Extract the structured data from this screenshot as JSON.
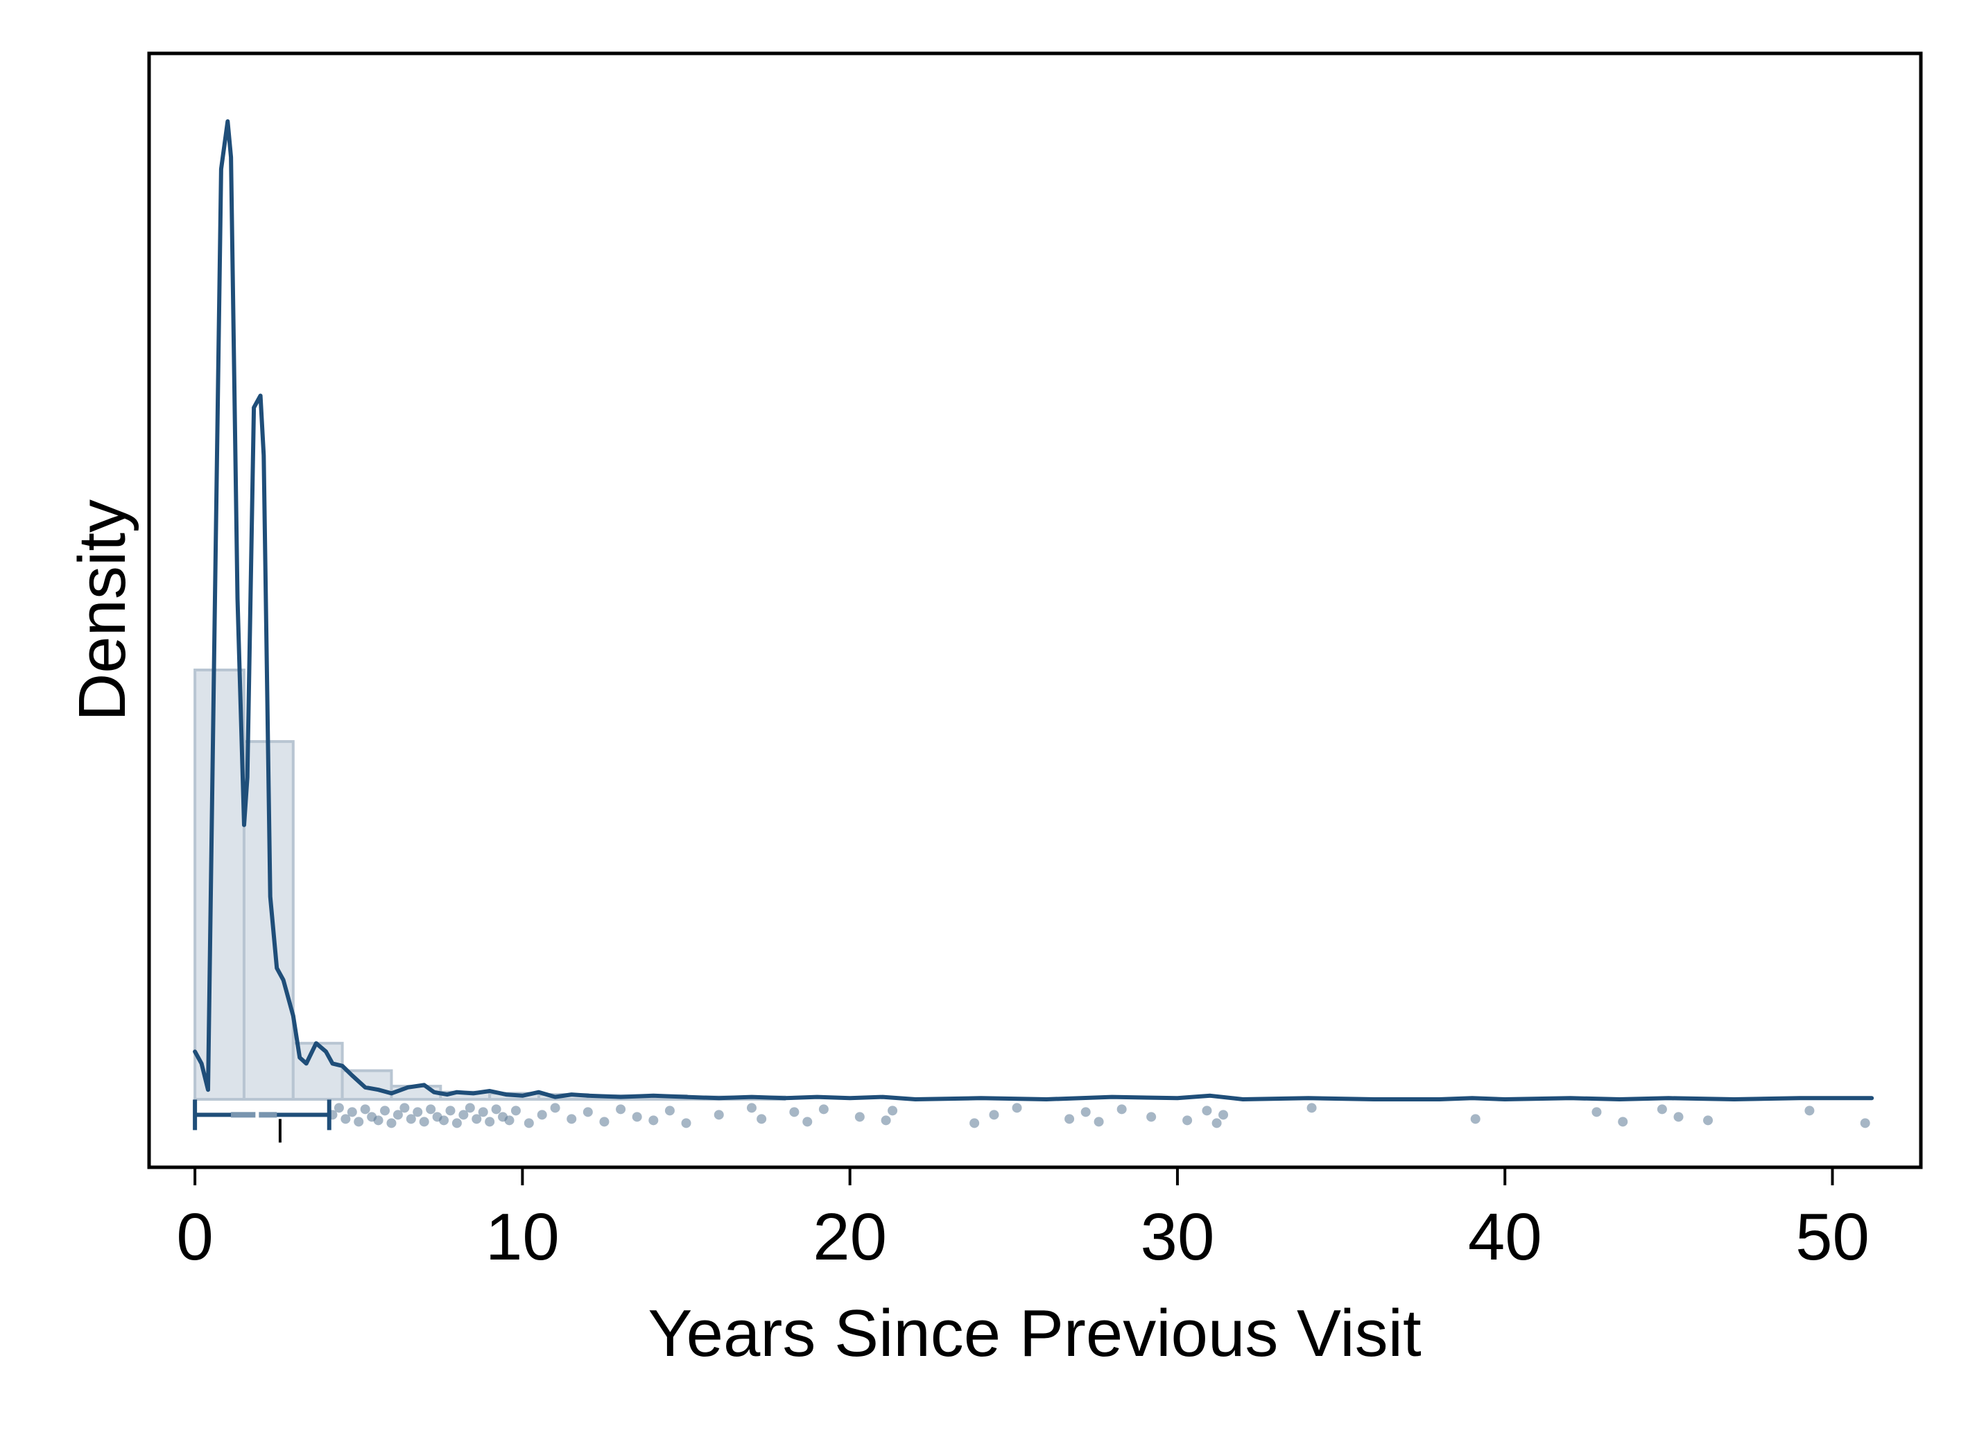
{
  "chart_data": {
    "type": "histogram",
    "title": "",
    "xlabel": "Years Since Previous Visit",
    "ylabel": "Density",
    "xlim": [
      -1.4,
      52.7
    ],
    "ylim": [
      -0.057,
      0.877
    ],
    "x_ticks": [
      "0",
      "10",
      "20",
      "30",
      "40",
      "50"
    ],
    "x_tick_values": [
      0,
      10,
      20,
      30,
      40,
      50
    ],
    "y_ticks": [],
    "grid": false,
    "legend": "none",
    "colors": {
      "line": "#1f4e79",
      "bar_fill": "#dce3ea",
      "bar_edge": "#b8c5d2",
      "points": "#5d7a96",
      "frame": "#000000"
    },
    "histogram": {
      "bin_width": 1.5,
      "bins": [
        {
          "start": 0.0,
          "end": 1.5,
          "density": 0.36
        },
        {
          "start": 1.5,
          "end": 3.0,
          "density": 0.3
        },
        {
          "start": 3.0,
          "end": 4.5,
          "density": 0.047
        },
        {
          "start": 4.5,
          "end": 6.0,
          "density": 0.024
        },
        {
          "start": 6.0,
          "end": 7.5,
          "density": 0.011
        },
        {
          "start": 7.5,
          "end": 9.0,
          "density": 0.006
        },
        {
          "start": 9.0,
          "end": 10.5,
          "density": 0.005
        },
        {
          "start": 10.5,
          "end": 12.0,
          "density": 0.004
        },
        {
          "start": 12.0,
          "end": 13.5,
          "density": 0.003
        },
        {
          "start": 13.5,
          "end": 15.0,
          "density": 0.003
        },
        {
          "start": 15.0,
          "end": 16.5,
          "density": 0.002
        },
        {
          "start": 16.5,
          "end": 18.0,
          "density": 0.002
        }
      ]
    },
    "density_curve": {
      "x": [
        0.0,
        0.2,
        0.4,
        0.6,
        0.8,
        1.0,
        1.1,
        1.3,
        1.5,
        1.6,
        1.8,
        2.0,
        2.1,
        2.3,
        2.5,
        2.7,
        3.0,
        3.2,
        3.4,
        3.7,
        4.0,
        4.2,
        4.5,
        4.8,
        5.2,
        5.6,
        6.0,
        6.5,
        7.0,
        7.3,
        7.7,
        8.0,
        8.5,
        9.0,
        9.5,
        10.0,
        10.5,
        11.0,
        11.5,
        12.0,
        13.0,
        14.0,
        15.0,
        16.0,
        17.0,
        18.0,
        19.0,
        20.0,
        21.0,
        22.0,
        24.0,
        26.0,
        28.0,
        30.0,
        31.0,
        32.0,
        34.0,
        36.0,
        38.0,
        39.0,
        40.0,
        42.0,
        43.5,
        45.0,
        47.0,
        49.0,
        51.2
      ],
      "y": [
        0.04,
        0.03,
        0.008,
        0.4,
        0.78,
        0.82,
        0.79,
        0.42,
        0.23,
        0.27,
        0.58,
        0.59,
        0.54,
        0.17,
        0.11,
        0.1,
        0.07,
        0.035,
        0.03,
        0.047,
        0.04,
        0.03,
        0.028,
        0.02,
        0.01,
        0.008,
        0.005,
        0.01,
        0.012,
        0.006,
        0.004,
        0.006,
        0.005,
        0.007,
        0.004,
        0.003,
        0.006,
        0.002,
        0.004,
        0.003,
        0.002,
        0.003,
        0.002,
        0.001,
        0.002,
        0.001,
        0.002,
        0.001,
        0.002,
        0.0,
        0.001,
        0.0,
        0.002,
        0.001,
        0.003,
        0.0,
        0.001,
        0.0,
        0.0,
        0.001,
        0.0,
        0.001,
        0.0,
        0.001,
        0.0,
        0.001,
        0.001
      ]
    },
    "boxplot": {
      "min": 0.0,
      "q1": 1.1,
      "median": 1.9,
      "mean": 2.6,
      "q3": 2.5,
      "upper_whisker": 4.1,
      "y_level": -0.013
    },
    "outliers": [
      4.2,
      4.4,
      4.6,
      4.8,
      5.0,
      5.2,
      5.4,
      5.6,
      5.8,
      6.0,
      6.2,
      6.4,
      6.6,
      6.8,
      7.0,
      7.2,
      7.4,
      7.6,
      7.8,
      8.0,
      8.2,
      8.4,
      8.6,
      8.8,
      9.0,
      9.2,
      9.4,
      9.6,
      9.8,
      10.2,
      10.6,
      11.0,
      11.5,
      12.0,
      12.5,
      13.0,
      13.5,
      14.0,
      14.5,
      15.0,
      16.0,
      17.0,
      17.3,
      18.3,
      18.7,
      19.2,
      20.3,
      21.1,
      21.3,
      23.8,
      24.4,
      25.1,
      26.7,
      27.2,
      27.6,
      28.3,
      29.2,
      30.3,
      30.9,
      31.2,
      31.4,
      34.1,
      39.1,
      42.8,
      43.6,
      44.8,
      45.3,
      46.2,
      49.3,
      51.0
    ]
  }
}
